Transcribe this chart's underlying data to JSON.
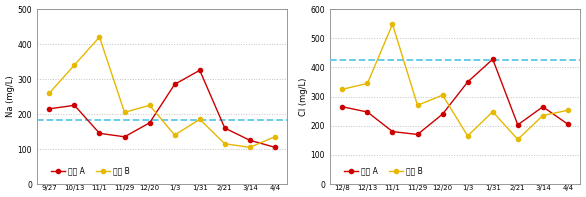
{
  "chart1": {
    "ylabel": "Na (mg/L)",
    "ylim": [
      0,
      500
    ],
    "yticks": [
      0,
      100,
      200,
      300,
      400,
      500
    ],
    "x_labels": [
      "9/27",
      "10/13",
      "11/1",
      "11/29",
      "12/20",
      "1/3",
      "1/31",
      "2/21",
      "3/14",
      "4/4"
    ],
    "series_A": [
      215,
      225,
      145,
      135,
      175,
      285,
      325,
      160,
      125,
      105
    ],
    "series_B": [
      260,
      340,
      420,
      205,
      225,
      140,
      185,
      115,
      105,
      135
    ],
    "hline": 183,
    "hline_color": "#5BC8E8",
    "color_A": "#CC0000",
    "color_B": "#E6B800",
    "legend_A": "농장 A",
    "legend_B": "농장 B"
  },
  "chart2": {
    "ylabel": "Cl (mg/L)",
    "ylim": [
      0,
      600
    ],
    "yticks": [
      0,
      100,
      200,
      300,
      400,
      500,
      600
    ],
    "x_labels": [
      "12/8",
      "12/13",
      "11/1",
      "11/29",
      "12/20",
      "1/3",
      "1/31",
      "2/21",
      "3/14",
      "4/4"
    ],
    "series_A": [
      265,
      247,
      180,
      170,
      240,
      350,
      428,
      203,
      265,
      205
    ],
    "series_B": [
      325,
      345,
      548,
      270,
      305,
      165,
      248,
      153,
      235,
      253
    ],
    "hline": 425,
    "hline_color": "#5BC8E8",
    "color_A": "#CC0000",
    "color_B": "#E6B800",
    "legend_A": "농장 A",
    "legend_B": "농장 B"
  }
}
